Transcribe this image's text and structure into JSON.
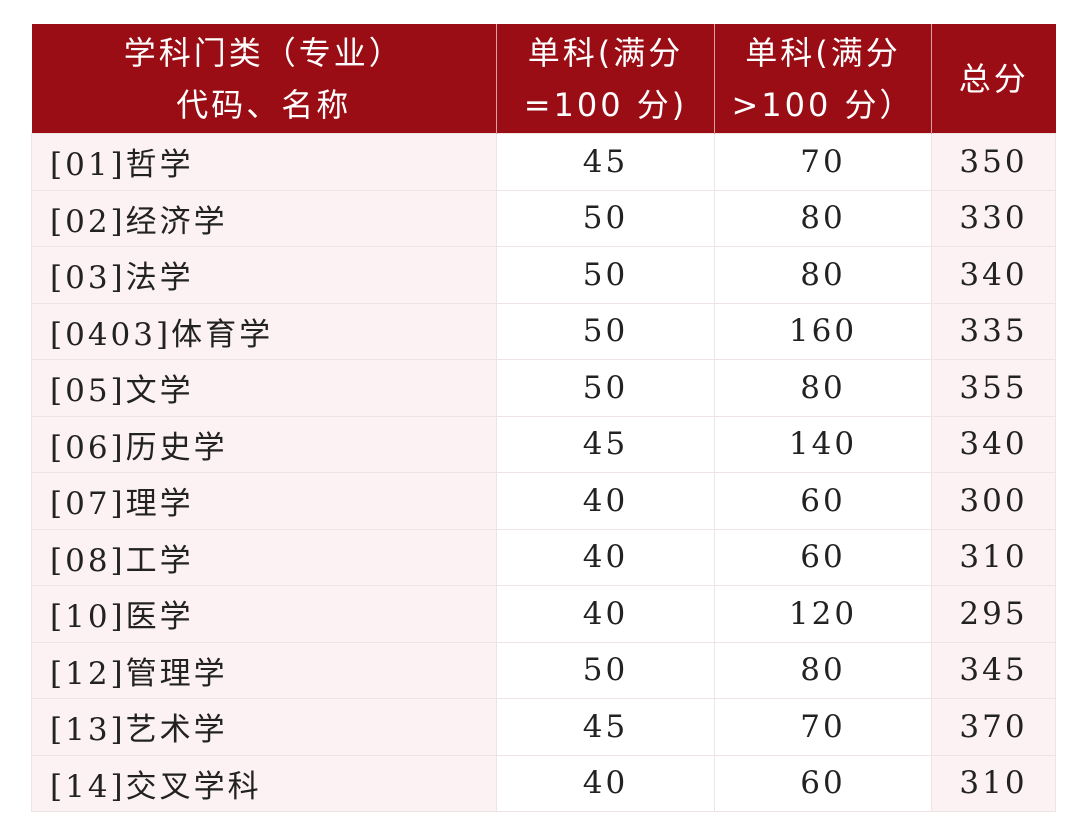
{
  "colors": {
    "header_bg": "#9b0d15",
    "row_tint": "#fcf2f3"
  },
  "headers": [
    [
      "学科门类（专业）",
      "代码、名称"
    ],
    [
      "单科(满分",
      "=100 分)"
    ],
    [
      "单科(满分",
      ">100 分）"
    ],
    [
      "总分"
    ]
  ],
  "rows": [
    [
      "[01]哲学",
      "45",
      "70",
      "350"
    ],
    [
      "[02]经济学",
      "50",
      "80",
      "330"
    ],
    [
      "[03]法学",
      "50",
      "80",
      "340"
    ],
    [
      "[0403]体育学",
      "50",
      "160",
      "335"
    ],
    [
      "[05]文学",
      "50",
      "80",
      "355"
    ],
    [
      "[06]历史学",
      "45",
      "140",
      "340"
    ],
    [
      "[07]理学",
      "40",
      "60",
      "300"
    ],
    [
      "[08]工学",
      "40",
      "60",
      "310"
    ],
    [
      "[10]医学",
      "40",
      "120",
      "295"
    ],
    [
      "[12]管理学",
      "50",
      "80",
      "345"
    ],
    [
      "[13]艺术学",
      "45",
      "70",
      "370"
    ],
    [
      "[14]交叉学科",
      "40",
      "60",
      "310"
    ]
  ]
}
